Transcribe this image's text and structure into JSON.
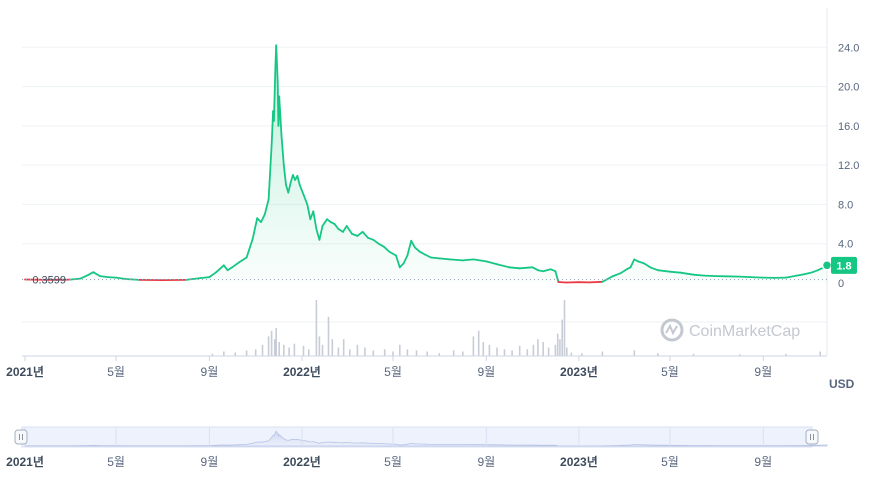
{
  "chart_data": {
    "type": "area",
    "currency": "USD",
    "watermark": "CoinMarketCap",
    "start_price_label": "0.3599",
    "current_price_label": "1.8",
    "colors": {
      "up": "#16c784",
      "down": "#ea3943",
      "volume": "#c7ccd6",
      "grid": "#eff2f5",
      "navigator_fill": "#eef2fc",
      "badge": "#16c784"
    },
    "ylim": [
      0,
      28
    ],
    "y_ticks": [
      {
        "value": 0,
        "label": "0"
      },
      {
        "value": 4,
        "label": "4.0"
      },
      {
        "value": 8,
        "label": "8.0"
      },
      {
        "value": 12,
        "label": "12.0"
      },
      {
        "value": 16,
        "label": "16.0"
      },
      {
        "value": 20,
        "label": "20.0"
      },
      {
        "value": 24,
        "label": "24.0"
      }
    ],
    "x_range": [
      "2020-12-28",
      "2023-11-24"
    ],
    "x_ticks": [
      {
        "date": "2021-01-01",
        "label": "2021년",
        "year": true
      },
      {
        "date": "2021-05-01",
        "label": "5월",
        "year": false
      },
      {
        "date": "2021-09-01",
        "label": "9월",
        "year": false
      },
      {
        "date": "2022-01-01",
        "label": "2022년",
        "year": true
      },
      {
        "date": "2022-05-01",
        "label": "5월",
        "year": false
      },
      {
        "date": "2022-09-01",
        "label": "9월",
        "year": false
      },
      {
        "date": "2023-01-01",
        "label": "2023년",
        "year": true
      },
      {
        "date": "2023-05-01",
        "label": "5월",
        "year": false
      },
      {
        "date": "2023-09-01",
        "label": "9월",
        "year": false
      }
    ],
    "price_series": [
      [
        "2021-01-01",
        0.36
      ],
      [
        "2021-02-01",
        0.33
      ],
      [
        "2021-03-01",
        0.35
      ],
      [
        "2021-03-15",
        0.45
      ],
      [
        "2021-03-25",
        0.8
      ],
      [
        "2021-04-01",
        1.1
      ],
      [
        "2021-04-10",
        0.7
      ],
      [
        "2021-04-20",
        0.6
      ],
      [
        "2021-05-01",
        0.55
      ],
      [
        "2021-05-15",
        0.4
      ],
      [
        "2021-06-01",
        0.32
      ],
      [
        "2021-07-01",
        0.3
      ],
      [
        "2021-08-01",
        0.32
      ],
      [
        "2021-08-20",
        0.5
      ],
      [
        "2021-09-01",
        0.6
      ],
      [
        "2021-09-10",
        1.1
      ],
      [
        "2021-09-20",
        1.8
      ],
      [
        "2021-09-25",
        1.3
      ],
      [
        "2021-10-01",
        1.6
      ],
      [
        "2021-10-10",
        2.1
      ],
      [
        "2021-10-20",
        2.6
      ],
      [
        "2021-10-28",
        4.5
      ],
      [
        "2021-11-03",
        6.6
      ],
      [
        "2021-11-08",
        6.2
      ],
      [
        "2021-11-13",
        7.0
      ],
      [
        "2021-11-18",
        8.5
      ],
      [
        "2021-11-22",
        14.0
      ],
      [
        "2021-11-24",
        17.5
      ],
      [
        "2021-11-25",
        16.5
      ],
      [
        "2021-11-27",
        22.0
      ],
      [
        "2021-11-28",
        24.2
      ],
      [
        "2021-11-30",
        20.5
      ],
      [
        "2021-12-01",
        16.0
      ],
      [
        "2021-12-02",
        19.0
      ],
      [
        "2021-12-05",
        15.0
      ],
      [
        "2021-12-08",
        12.0
      ],
      [
        "2021-12-11",
        10.0
      ],
      [
        "2021-12-14",
        9.2
      ],
      [
        "2021-12-17",
        10.2
      ],
      [
        "2021-12-20",
        11.0
      ],
      [
        "2021-12-23",
        10.5
      ],
      [
        "2021-12-26",
        10.9
      ],
      [
        "2021-12-29",
        10.0
      ],
      [
        "2022-01-03",
        9.0
      ],
      [
        "2022-01-08",
        8.0
      ],
      [
        "2022-01-12",
        6.5
      ],
      [
        "2022-01-16",
        7.3
      ],
      [
        "2022-01-20",
        5.5
      ],
      [
        "2022-01-24",
        4.4
      ],
      [
        "2022-01-28",
        5.8
      ],
      [
        "2022-02-03",
        6.5
      ],
      [
        "2022-02-08",
        6.2
      ],
      [
        "2022-02-13",
        6.0
      ],
      [
        "2022-02-18",
        5.5
      ],
      [
        "2022-02-24",
        5.2
      ],
      [
        "2022-03-01",
        5.8
      ],
      [
        "2022-03-08",
        5.0
      ],
      [
        "2022-03-15",
        4.8
      ],
      [
        "2022-03-22",
        5.2
      ],
      [
        "2022-03-29",
        4.6
      ],
      [
        "2022-04-05",
        4.4
      ],
      [
        "2022-04-12",
        4.0
      ],
      [
        "2022-04-19",
        3.7
      ],
      [
        "2022-04-26",
        3.2
      ],
      [
        "2022-05-05",
        2.8
      ],
      [
        "2022-05-10",
        1.6
      ],
      [
        "2022-05-15",
        2.0
      ],
      [
        "2022-05-20",
        2.8
      ],
      [
        "2022-05-25",
        4.3
      ],
      [
        "2022-05-30",
        3.6
      ],
      [
        "2022-06-05",
        3.2
      ],
      [
        "2022-06-12",
        2.9
      ],
      [
        "2022-06-20",
        2.6
      ],
      [
        "2022-07-01",
        2.5
      ],
      [
        "2022-07-15",
        2.4
      ],
      [
        "2022-08-01",
        2.3
      ],
      [
        "2022-08-15",
        2.4
      ],
      [
        "2022-09-01",
        2.2
      ],
      [
        "2022-09-15",
        1.9
      ],
      [
        "2022-10-01",
        1.6
      ],
      [
        "2022-10-15",
        1.5
      ],
      [
        "2022-11-01",
        1.6
      ],
      [
        "2022-11-08",
        1.3
      ],
      [
        "2022-11-15",
        1.2
      ],
      [
        "2022-11-25",
        1.4
      ],
      [
        "2022-12-01",
        1.2
      ],
      [
        "2022-12-05",
        0.1
      ],
      [
        "2022-12-15",
        0.05
      ],
      [
        "2023-01-01",
        0.08
      ],
      [
        "2023-01-15",
        0.06
      ],
      [
        "2023-02-01",
        0.12
      ],
      [
        "2023-02-15",
        0.7
      ],
      [
        "2023-02-25",
        1.0
      ],
      [
        "2023-03-05",
        1.4
      ],
      [
        "2023-03-10",
        1.6
      ],
      [
        "2023-03-15",
        2.4
      ],
      [
        "2023-03-20",
        2.2
      ],
      [
        "2023-03-28",
        2.0
      ],
      [
        "2023-04-05",
        1.6
      ],
      [
        "2023-04-15",
        1.3
      ],
      [
        "2023-05-01",
        1.15
      ],
      [
        "2023-05-15",
        1.05
      ],
      [
        "2023-06-01",
        0.85
      ],
      [
        "2023-06-15",
        0.75
      ],
      [
        "2023-07-01",
        0.7
      ],
      [
        "2023-07-15",
        0.68
      ],
      [
        "2023-08-01",
        0.65
      ],
      [
        "2023-08-15",
        0.6
      ],
      [
        "2023-09-01",
        0.55
      ],
      [
        "2023-09-15",
        0.52
      ],
      [
        "2023-10-01",
        0.55
      ],
      [
        "2023-10-15",
        0.75
      ],
      [
        "2023-10-25",
        0.9
      ],
      [
        "2023-11-05",
        1.1
      ],
      [
        "2023-11-12",
        1.3
      ],
      [
        "2023-11-20",
        1.6
      ],
      [
        "2023-11-24",
        1.8
      ]
    ],
    "volume_series": [
      [
        "2021-09-05",
        0.04
      ],
      [
        "2021-09-20",
        0.08
      ],
      [
        "2021-10-05",
        0.06
      ],
      [
        "2021-10-20",
        0.1
      ],
      [
        "2021-11-01",
        0.12
      ],
      [
        "2021-11-10",
        0.2
      ],
      [
        "2021-11-18",
        0.35
      ],
      [
        "2021-11-22",
        0.45
      ],
      [
        "2021-11-26",
        0.3
      ],
      [
        "2021-11-28",
        0.5
      ],
      [
        "2021-12-02",
        0.25
      ],
      [
        "2021-12-08",
        0.2
      ],
      [
        "2021-12-15",
        0.15
      ],
      [
        "2021-12-22",
        0.22
      ],
      [
        "2022-01-03",
        0.18
      ],
      [
        "2022-01-10",
        0.12
      ],
      [
        "2022-01-20",
        1.0
      ],
      [
        "2022-01-24",
        0.35
      ],
      [
        "2022-01-28",
        0.2
      ],
      [
        "2022-02-05",
        0.7
      ],
      [
        "2022-02-10",
        0.3
      ],
      [
        "2022-02-18",
        0.15
      ],
      [
        "2022-02-25",
        0.3
      ],
      [
        "2022-03-05",
        0.12
      ],
      [
        "2022-03-15",
        0.2
      ],
      [
        "2022-03-25",
        0.15
      ],
      [
        "2022-04-05",
        0.1
      ],
      [
        "2022-04-20",
        0.12
      ],
      [
        "2022-05-01",
        0.08
      ],
      [
        "2022-05-10",
        0.2
      ],
      [
        "2022-05-20",
        0.12
      ],
      [
        "2022-06-01",
        0.1
      ],
      [
        "2022-06-15",
        0.08
      ],
      [
        "2022-07-01",
        0.05
      ],
      [
        "2022-07-20",
        0.1
      ],
      [
        "2022-08-01",
        0.08
      ],
      [
        "2022-08-15",
        0.35
      ],
      [
        "2022-08-22",
        0.45
      ],
      [
        "2022-08-28",
        0.25
      ],
      [
        "2022-09-05",
        0.2
      ],
      [
        "2022-09-15",
        0.15
      ],
      [
        "2022-09-25",
        0.12
      ],
      [
        "2022-10-05",
        0.1
      ],
      [
        "2022-10-15",
        0.18
      ],
      [
        "2022-10-25",
        0.12
      ],
      [
        "2022-11-02",
        0.2
      ],
      [
        "2022-11-08",
        0.3
      ],
      [
        "2022-11-15",
        0.25
      ],
      [
        "2022-11-22",
        0.15
      ],
      [
        "2022-12-01",
        0.2
      ],
      [
        "2022-12-04",
        0.4
      ],
      [
        "2022-12-07",
        0.3
      ],
      [
        "2022-12-10",
        0.65
      ],
      [
        "2022-12-13",
        1.0
      ],
      [
        "2022-12-16",
        0.15
      ],
      [
        "2022-12-22",
        0.06
      ],
      [
        "2023-01-05",
        0.05
      ],
      [
        "2023-02-01",
        0.08
      ],
      [
        "2023-03-15",
        0.1
      ],
      [
        "2023-04-15",
        0.05
      ],
      [
        "2023-06-01",
        0.04
      ],
      [
        "2023-08-01",
        0.03
      ],
      [
        "2023-10-01",
        0.04
      ],
      [
        "2023-11-15",
        0.08
      ]
    ]
  }
}
